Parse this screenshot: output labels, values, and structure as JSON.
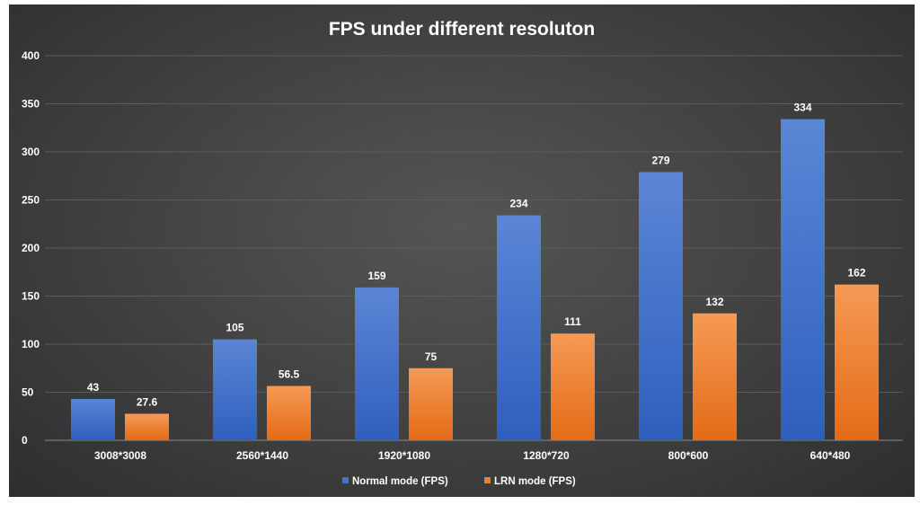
{
  "chart_data": {
    "type": "bar",
    "title": "FPS under different resoluton",
    "xlabel": "",
    "ylabel": "",
    "ylim": [
      0,
      400
    ],
    "yticks": [
      0,
      50,
      100,
      150,
      200,
      250,
      300,
      350,
      400
    ],
    "grid": true,
    "legend_position": "bottom",
    "categories": [
      "3008*3008",
      "2560*1440",
      "1920*1080",
      "1280*720",
      "800*600",
      "640*480"
    ],
    "series": [
      {
        "name": "Normal mode (FPS)",
        "color": "#4472c4",
        "values": [
          43,
          105,
          159,
          234,
          279,
          334
        ],
        "labels": [
          "43",
          "105",
          "159",
          "234",
          "279",
          "334"
        ]
      },
      {
        "name": "LRN mode (FPS)",
        "color": "#ed7d31",
        "values": [
          27.6,
          56.5,
          75,
          111,
          132,
          162
        ],
        "labels": [
          "27.6",
          "56.5",
          "75",
          "111",
          "132",
          "162"
        ]
      }
    ]
  }
}
